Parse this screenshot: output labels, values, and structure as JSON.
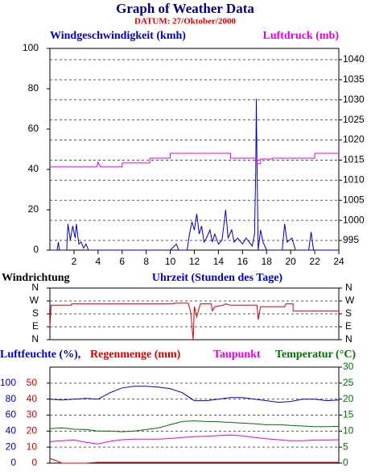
{
  "chart_data": [
    {
      "type": "line",
      "title": "Graph of Weather Data",
      "subtitle": "DATUM: 27/Oktober/2000",
      "xlabel": "Uhrzeit (Stunden des Tage)",
      "xlim": [
        0,
        24
      ],
      "xticks": [
        2,
        4,
        6,
        8,
        10,
        12,
        14,
        16,
        18,
        20,
        22,
        24
      ],
      "ylim": [
        0,
        100
      ],
      "yticks": [
        0,
        20,
        40,
        60,
        80,
        100
      ],
      "y2lim": [
        992.6,
        1042.8
      ],
      "y2ticks": [
        995,
        1000,
        1005,
        1010,
        1015,
        1020,
        1025,
        1030,
        1035,
        1040
      ],
      "grid": true,
      "series": [
        {
          "name": "Windgeschwindigkeit (kmh)",
          "color": "#0000c0",
          "x": [
            0,
            0.6,
            0.7,
            0.8,
            1.4,
            1.5,
            1.7,
            1.9,
            2.1,
            2.2,
            2.4,
            2.6,
            2.8,
            3.0,
            3.2,
            10.0,
            10.5,
            10.7,
            11.4,
            11.6,
            11.8,
            12.0,
            12.2,
            12.4,
            12.6,
            12.8,
            13.0,
            13.3,
            13.5,
            13.7,
            14.0,
            14.3,
            14.6,
            14.8,
            15.1,
            15.3,
            15.6,
            16.0,
            16.3,
            16.8,
            17.0,
            17.1,
            17.15,
            17.2,
            17.3,
            17.5,
            17.7,
            18.0,
            19.3,
            19.5,
            19.7,
            20.1,
            20.4,
            21.5,
            21.7,
            21.9,
            24
          ],
          "values": [
            0,
            0,
            4,
            0,
            0,
            13,
            5,
            12,
            6,
            13,
            3,
            4,
            1,
            3,
            0,
            0,
            3,
            0,
            0,
            8,
            14,
            10,
            18,
            8,
            12,
            4,
            6,
            10,
            4,
            8,
            3,
            5,
            20,
            6,
            10,
            4,
            6,
            3,
            6,
            2,
            8,
            40,
            75,
            45,
            0,
            10,
            4,
            0,
            0,
            13,
            4,
            6,
            0,
            0,
            9,
            0,
            0
          ]
        },
        {
          "name": "Luftdruck (mb)",
          "color": "#e000e0",
          "axis": "y2",
          "x": [
            0,
            3.9,
            4.0,
            4.2,
            6.0,
            6.0,
            8.3,
            8.3,
            10.0,
            10.0,
            15.0,
            15.0,
            17.2,
            17.2,
            17.5,
            17.5,
            18.5,
            18.5,
            22.0,
            22.0,
            24
          ],
          "values": [
            1013.3,
            1013.3,
            1014.5,
            1013.3,
            1013.3,
            1014.3,
            1014.3,
            1015.5,
            1015.5,
            1016.7,
            1016.7,
            1015.5,
            1015.5,
            1014.1,
            1014.1,
            1015.3,
            1015.3,
            1015.5,
            1015.5,
            1016.7,
            1016.7
          ]
        }
      ]
    },
    {
      "type": "line",
      "title": "Windrichtung",
      "xlim": [
        0,
        24
      ],
      "ylim": [
        0,
        360
      ],
      "yticks": [
        {
          "value": 0,
          "label": "N"
        },
        {
          "value": 90,
          "label": "E"
        },
        {
          "value": 180,
          "label": "S"
        },
        {
          "value": 270,
          "label": "W"
        },
        {
          "value": 360,
          "label": "N"
        }
      ],
      "grid": true,
      "series": [
        {
          "color": "#d00000",
          "x": [
            0,
            0.1,
            1.8,
            1.8,
            10.3,
            10.3,
            11.5,
            11.7,
            11.9,
            12.0,
            12.2,
            12.5,
            13.4,
            13.5,
            13.7,
            14.4,
            14.6,
            15.0,
            17.2,
            17.3,
            17.5,
            19.5,
            19.6,
            20.2,
            20.2,
            24
          ],
          "values": [
            90,
            240,
            240,
            250,
            250,
            255,
            255,
            190,
            0,
            230,
            160,
            250,
            250,
            200,
            230,
            240,
            250,
            240,
            240,
            140,
            230,
            230,
            250,
            250,
            200,
            200
          ]
        }
      ]
    },
    {
      "type": "line",
      "xlim": [
        0,
        24
      ],
      "ylim": [
        0,
        120
      ],
      "yticks": [
        0,
        20,
        40,
        60,
        80,
        100
      ],
      "y2lim": [
        0,
        30
      ],
      "y2ticks": [
        0,
        5,
        10,
        15,
        20,
        25,
        30
      ],
      "y3lim": [
        0,
        60
      ],
      "y3ticks": [
        0,
        10,
        20,
        30,
        40,
        50
      ],
      "grid": true,
      "series": [
        {
          "name": "Luftfeuchte (%),",
          "color": "#0000c0",
          "x": [
            0,
            1,
            2,
            3,
            4,
            5,
            6,
            7,
            8,
            9,
            10,
            11,
            12,
            13,
            14,
            15,
            16,
            17,
            18,
            19,
            20,
            21,
            22,
            23,
            24
          ],
          "values": [
            80,
            79,
            80,
            81,
            80,
            88,
            94,
            96,
            96,
            95,
            93,
            88,
            78,
            78,
            80,
            82,
            82,
            80,
            78,
            76,
            77,
            80,
            80,
            78,
            79
          ]
        },
        {
          "name": "Regenmenge (mm)",
          "color": "#d00000",
          "axis": "y3",
          "x": [
            0,
            1,
            2,
            3,
            4,
            5,
            6,
            7,
            8,
            9,
            10,
            11,
            12,
            13,
            14,
            15,
            16,
            17,
            18,
            19,
            20,
            21,
            22,
            23,
            24
          ],
          "values": [
            3,
            0,
            0,
            0,
            0.5,
            0.5,
            0.5,
            0.5,
            0.5,
            0.5,
            0.5,
            0.5,
            0.5,
            0.5,
            0.5,
            0.5,
            0.5,
            0.5,
            0.5,
            0.5,
            0.5,
            0.5,
            0.5,
            0.5,
            0.5
          ]
        },
        {
          "name": "Taupunkt",
          "color": "#e000e0",
          "axis": "y2",
          "x": [
            0,
            1,
            2,
            3,
            4,
            5,
            6,
            7,
            8,
            9,
            10,
            11,
            12,
            13,
            14,
            15,
            16,
            17,
            18,
            19,
            20,
            21,
            22,
            23,
            24
          ],
          "values": [
            6.7,
            7,
            7.2,
            6.5,
            6,
            6.8,
            7.3,
            7.5,
            7.5,
            7.5,
            7.7,
            8,
            8.3,
            8.4,
            8.6,
            8.8,
            8.5,
            8,
            7.6,
            7.3,
            7,
            7,
            7.2,
            7.2,
            7.3
          ]
        },
        {
          "name": "Temperatur (°C)",
          "color": "#007000",
          "axis": "y2",
          "x": [
            0,
            1,
            2,
            3,
            4,
            5,
            6,
            7,
            8,
            9,
            10,
            11,
            12,
            13,
            14,
            15,
            16,
            17,
            18,
            19,
            20,
            21,
            22,
            23,
            24
          ],
          "values": [
            10.8,
            11,
            10.6,
            10.5,
            10,
            10,
            9.8,
            10,
            10.5,
            11,
            12,
            13,
            13.2,
            13,
            12.9,
            12.7,
            12.5,
            12.3,
            12,
            12,
            11.8,
            11.6,
            11.4,
            11.4,
            11.5
          ]
        }
      ]
    }
  ]
}
